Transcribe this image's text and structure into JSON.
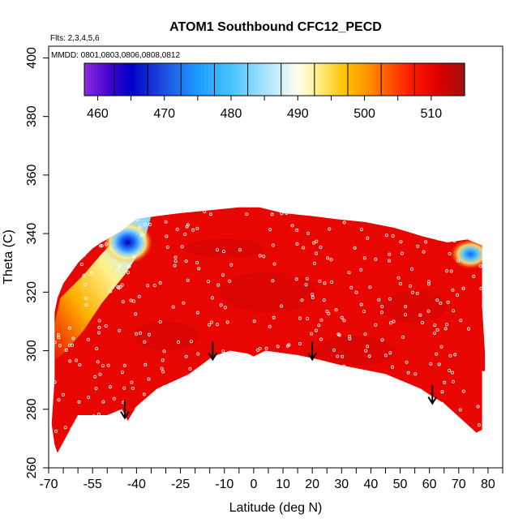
{
  "chart_data": {
    "type": "heatmap",
    "title": "ATOM1 Southbound CFC12_PECD",
    "flights_label": "Flts: 2,3,4,5,6",
    "dates_label": "MMDD: 0801,0803,0806,0808,0812",
    "xlabel": "Latitude (deg N)",
    "ylabel": "Theta (C)",
    "xlim": [
      -70,
      85
    ],
    "ylim": [
      260,
      404
    ],
    "x_ticks": [
      -70,
      -65,
      -60,
      -55,
      -50,
      -45,
      -40,
      -35,
      -30,
      -25,
      -20,
      -15,
      -10,
      -5,
      0,
      5,
      10,
      15,
      20,
      25,
      30,
      35,
      40,
      45,
      50,
      55,
      60,
      65,
      70,
      75,
      80,
      85
    ],
    "x_tick_labels": [
      "-70",
      "-55",
      "-40",
      "-25",
      "-10",
      "0",
      "10",
      "20",
      "30",
      "40",
      "50",
      "60",
      "70",
      "80"
    ],
    "y_ticks": [
      260,
      280,
      300,
      320,
      340,
      360,
      380,
      400
    ],
    "y_tick_labels": [
      "260",
      "280",
      "300",
      "320",
      "340",
      "360",
      "380",
      "400"
    ],
    "colorbar": {
      "range": [
        458,
        515
      ],
      "tick_values": [
        460,
        470,
        480,
        490,
        500,
        510
      ],
      "tick_labels": [
        "460",
        "470",
        "480",
        "490",
        "500",
        "510"
      ],
      "stops": [
        {
          "value": 458,
          "color": "#8a2be2"
        },
        {
          "value": 462,
          "color": "#4000d0"
        },
        {
          "value": 465,
          "color": "#0000c8"
        },
        {
          "value": 470,
          "color": "#1f4fe0"
        },
        {
          "value": 475,
          "color": "#1c9bff"
        },
        {
          "value": 480,
          "color": "#46c4ff"
        },
        {
          "value": 485,
          "color": "#a6e2ff"
        },
        {
          "value": 490,
          "color": "#fdfff0"
        },
        {
          "value": 493,
          "color": "#fff08a"
        },
        {
          "value": 497,
          "color": "#ffc400"
        },
        {
          "value": 500,
          "color": "#ff9a00"
        },
        {
          "value": 503,
          "color": "#ff6400"
        },
        {
          "value": 507,
          "color": "#ff1a00"
        },
        {
          "value": 511,
          "color": "#e00000"
        },
        {
          "value": 515,
          "color": "#a01010"
        }
      ]
    },
    "domain_outline": [
      [
        -68,
        268
      ],
      [
        -67,
        265
      ],
      [
        -60,
        278
      ],
      [
        -50,
        278
      ],
      [
        -45,
        280
      ],
      [
        -43,
        276
      ],
      [
        -40,
        281
      ],
      [
        -33,
        287
      ],
      [
        -22,
        292
      ],
      [
        -14,
        298
      ],
      [
        -8,
        300
      ],
      [
        -2,
        299
      ],
      [
        0,
        298
      ],
      [
        4,
        300
      ],
      [
        15,
        298.5
      ],
      [
        22,
        297
      ],
      [
        30,
        295
      ],
      [
        45,
        292
      ],
      [
        57,
        287
      ],
      [
        60,
        285
      ],
      [
        65,
        282
      ],
      [
        76,
        272
      ],
      [
        78,
        273
      ],
      [
        78,
        293
      ],
      [
        79,
        293
      ],
      [
        79,
        299
      ],
      [
        78,
        315
      ],
      [
        78,
        336
      ],
      [
        73,
        338
      ],
      [
        66,
        337
      ],
      [
        58,
        339
      ],
      [
        48,
        342
      ],
      [
        38,
        344
      ],
      [
        28,
        345
      ],
      [
        20,
        346
      ],
      [
        10,
        347
      ],
      [
        2,
        349
      ],
      [
        -5,
        349
      ],
      [
        -15,
        348
      ],
      [
        -25,
        347
      ],
      [
        -33,
        346
      ],
      [
        -40,
        345
      ],
      [
        -45,
        341
      ],
      [
        -52,
        337
      ],
      [
        -55,
        335
      ],
      [
        -60,
        330
      ],
      [
        -65,
        323
      ],
      [
        -67,
        318
      ],
      [
        -68,
        313
      ],
      [
        -68,
        290
      ],
      [
        -69,
        275
      ]
    ],
    "features": [
      {
        "type": "low_band",
        "desc": "southern upper edge lower values",
        "points": [
          [
            -66,
            314
          ],
          [
            -58,
            320
          ],
          [
            -52,
            328
          ],
          [
            -45,
            334
          ],
          [
            -40,
            340
          ],
          [
            -35,
            344
          ]
        ],
        "value": 488
      },
      {
        "type": "minimum",
        "center": [
          -43,
          337
        ],
        "value": 468
      },
      {
        "type": "minimum",
        "center": [
          74,
          333
        ],
        "value": 477
      },
      {
        "type": "background",
        "value": 510
      }
    ],
    "arrows": [
      {
        "lat": -44,
        "theta": 277
      },
      {
        "lat": -14,
        "theta": 297
      },
      {
        "lat": 20,
        "theta": 297
      },
      {
        "lat": 61,
        "theta": 282
      }
    ],
    "obs_points_count": 420
  }
}
